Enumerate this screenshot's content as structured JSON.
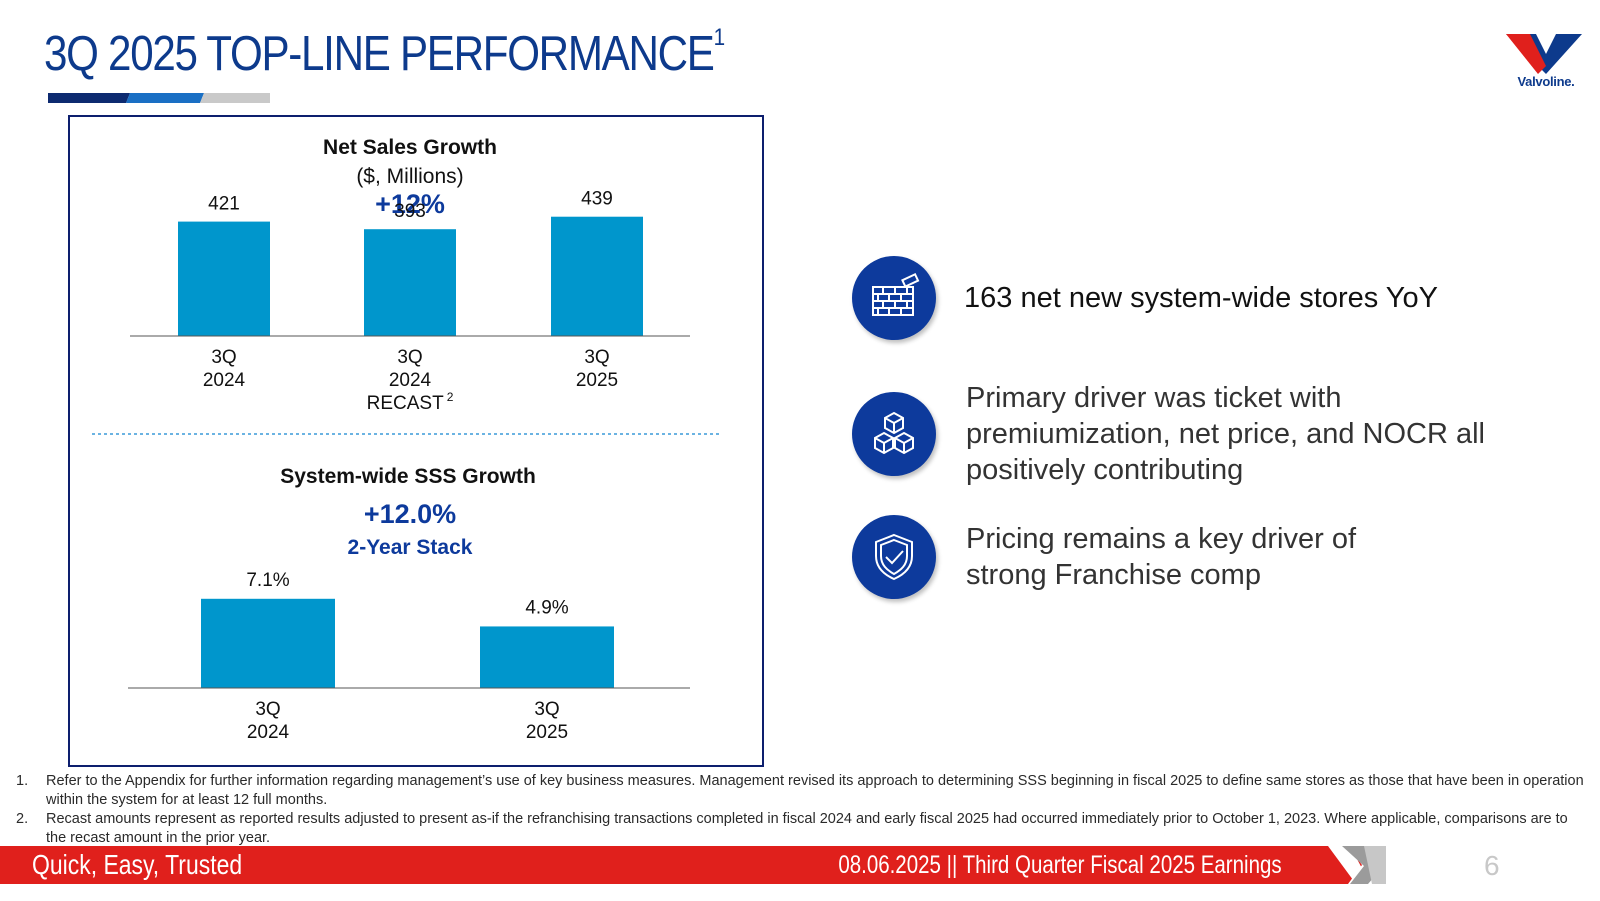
{
  "header": {
    "title": "3Q 2025 TOP-LINE PERFORMANCE",
    "title_sup": "1",
    "logo_text": "Valvoline.",
    "logo_red": "#e0201c",
    "logo_blue": "#0d3a8c"
  },
  "chart_data": [
    {
      "type": "bar",
      "title": "Net Sales Growth",
      "subtitle": "($, Millions)",
      "growth": "+12%",
      "categories": [
        "3Q 2024",
        "3Q 2024 RECAST",
        "3Q 2025"
      ],
      "category_lines": [
        [
          "3Q",
          "2024"
        ],
        [
          "3Q",
          "2024",
          "RECAST"
        ],
        [
          "3Q",
          "2025"
        ]
      ],
      "category_sup": [
        "",
        "2",
        ""
      ],
      "values": [
        421,
        393,
        439
      ],
      "value_labels": [
        "421",
        "393",
        "439"
      ],
      "ylim": [
        0,
        460
      ],
      "bar_color": "#0096cc"
    },
    {
      "type": "bar",
      "title": "System-wide SSS Growth",
      "growth": "+12.0%",
      "growth_note": "2-Year Stack",
      "categories": [
        "3Q 2024",
        "3Q 2025"
      ],
      "category_lines": [
        [
          "3Q",
          "2024"
        ],
        [
          "3Q",
          "2025"
        ]
      ],
      "values": [
        7.1,
        4.9
      ],
      "value_labels": [
        "7.1%",
        "4.9%"
      ],
      "ylim": [
        0,
        7.8
      ],
      "bar_color": "#0096cc"
    }
  ],
  "highlights": [
    {
      "icon": "brick-wall-icon",
      "text": "163  net new system-wide stores YoY"
    },
    {
      "icon": "boxes-icon",
      "text": "Primary driver was ticket with premiumization, net price, and NOCR all positively contributing"
    },
    {
      "icon": "shield-check-icon",
      "text": "Pricing remains a key driver of strong Franchise comp"
    }
  ],
  "footnotes": [
    {
      "num": "1.",
      "text": "Refer to the Appendix for further information regarding management’s use of key business measures. Management revised its approach to determining SSS beginning in fiscal 2025 to define same stores as those that have been in operation within the system for at least 12 full months."
    },
    {
      "num": "2.",
      "text": "Recast amounts represent as reported results adjusted to present as-if the refranchising transactions completed in fiscal 2024 and early fiscal 2025 had occurred immediately prior to October 1, 2023. Where applicable, comparisons are to the recast amount in the prior year."
    }
  ],
  "footer": {
    "tagline": "Quick, Easy, Trusted",
    "date": "08.06.2025",
    "separator": "||",
    "event": "Third Quarter Fiscal 2025 Earnings",
    "page_number": "6"
  },
  "colors": {
    "title": "#0d3a8c",
    "accent_blue": "#0d3a9c",
    "bar": "#0096cc",
    "footer_red": "#e0201c"
  }
}
